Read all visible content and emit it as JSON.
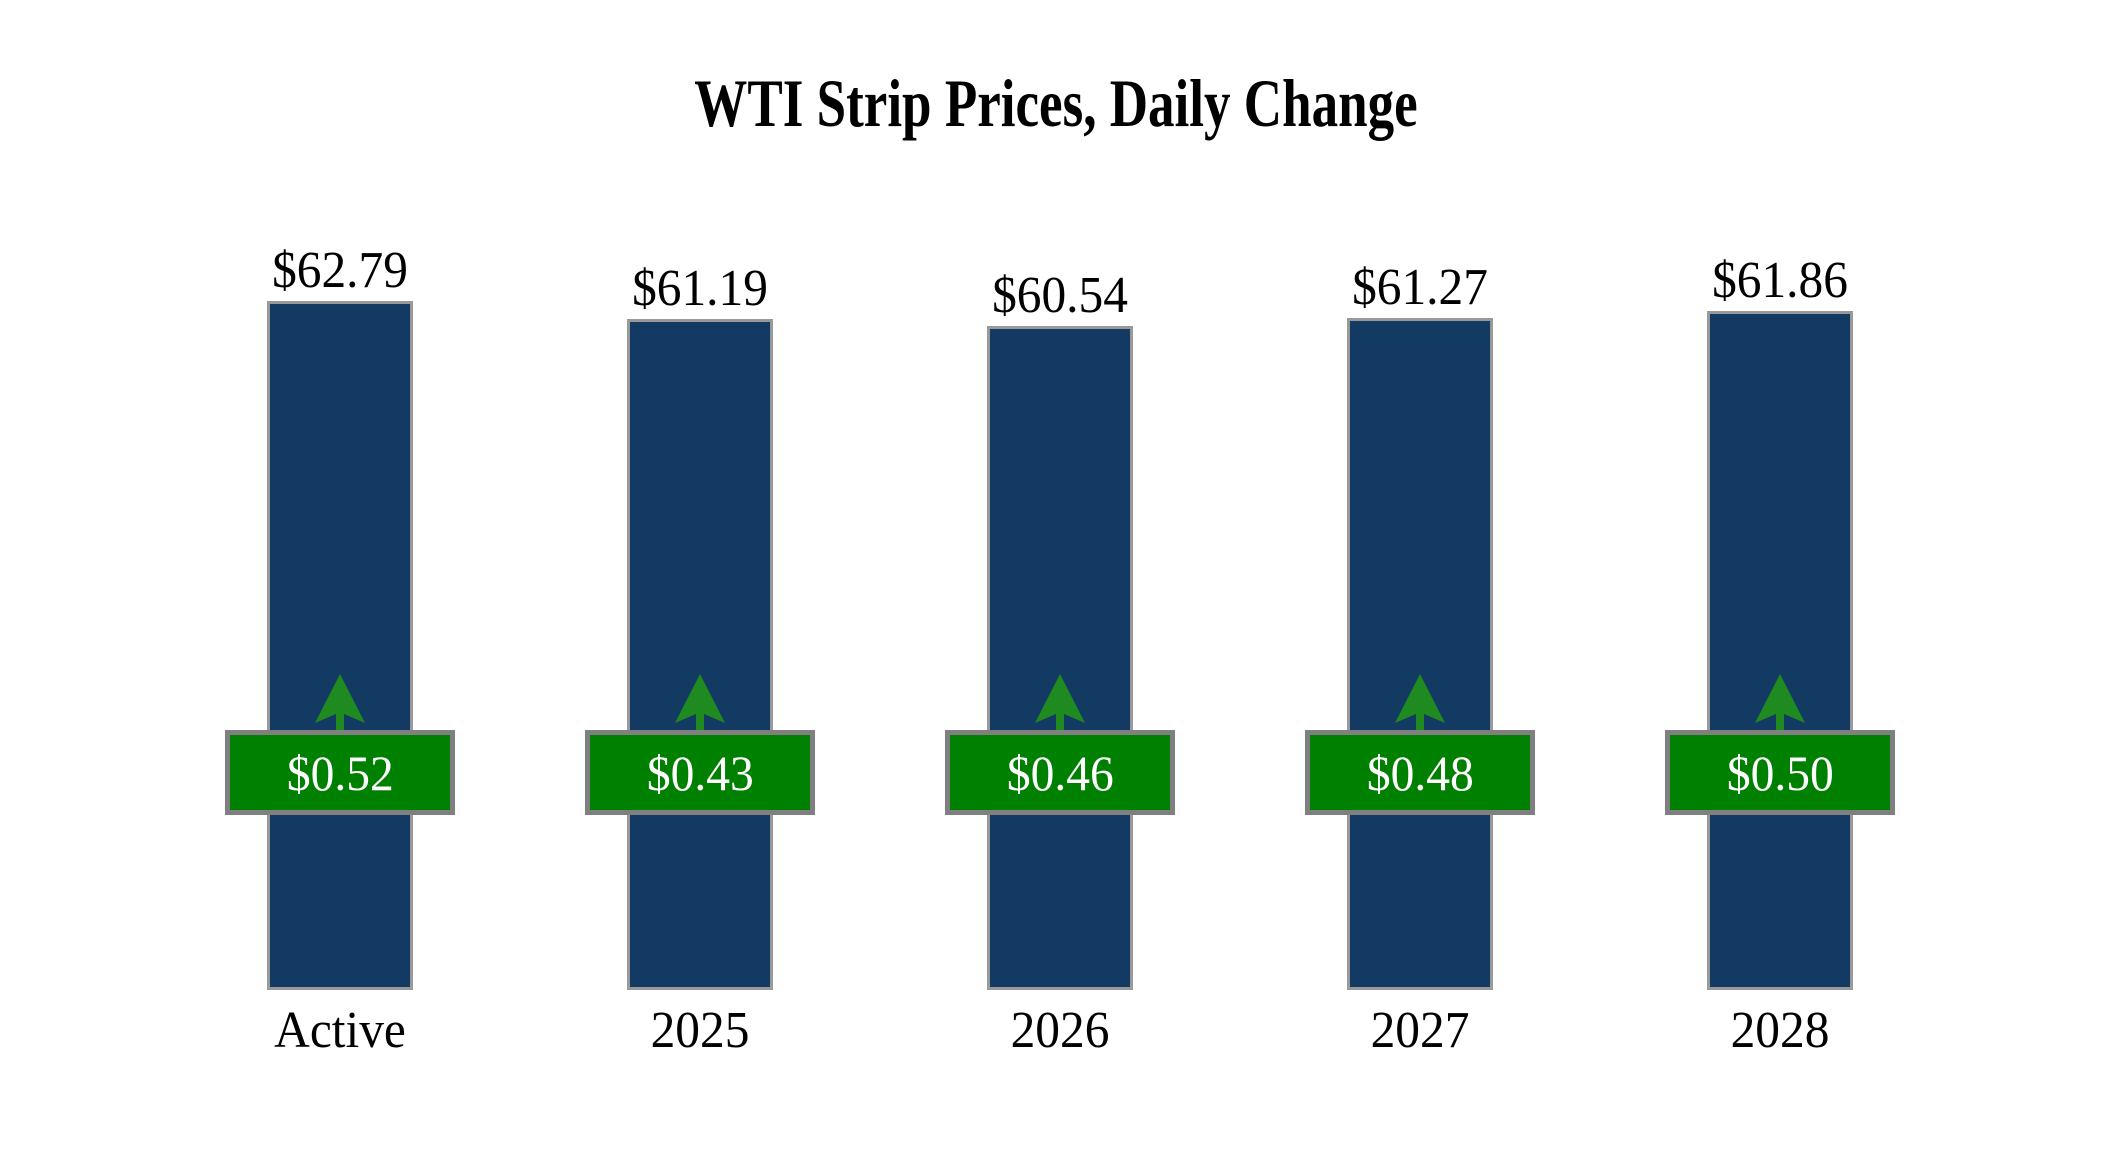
{
  "chart_data": {
    "type": "bar",
    "title": "WTI Strip Prices, Daily Change",
    "categories": [
      "Active",
      "2025",
      "2026",
      "2027",
      "2028"
    ],
    "series": [
      {
        "name": "strip_price",
        "values": [
          62.79,
          61.19,
          60.54,
          61.27,
          61.86
        ],
        "labels": [
          "$62.79",
          "$61.19",
          "$60.54",
          "$61.27",
          "$61.86"
        ]
      },
      {
        "name": "daily_change",
        "values": [
          0.52,
          0.43,
          0.46,
          0.48,
          0.5
        ],
        "labels": [
          "$0.52",
          "$0.43",
          "$0.46",
          "$0.48",
          "$0.50"
        ],
        "direction": "up"
      }
    ],
    "ylim": [
      0,
      63
    ],
    "grid": false,
    "legend": false,
    "colors": {
      "background": "#FFFFFF",
      "bar_fill": "#123A62",
      "bar_border": "#999999",
      "badge_fill": "#008000",
      "badge_border": "#808080",
      "badge_text": "#FFFFFF",
      "arrow": "#1F8A1F",
      "label_text": "#000000"
    }
  }
}
